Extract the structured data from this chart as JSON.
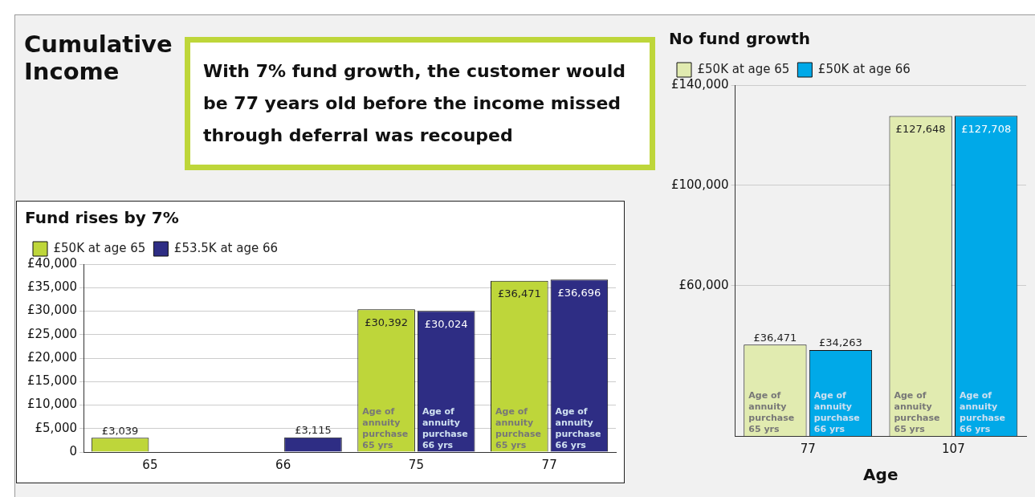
{
  "chart_data": [
    {
      "type": "other",
      "title": "Cumulative Income",
      "annotations": [
        "With 7% fund growth, the customer would be 77 years old before the income missed through deferral was recouped"
      ]
    },
    {
      "type": "bar",
      "title": "Fund rises by 7%",
      "categories": [
        "65",
        "66",
        "75",
        "77"
      ],
      "ylim": [
        0,
        40000
      ],
      "yticks": [
        0,
        {
          "value": 5000,
          "label": "£5,000"
        },
        {
          "value": 10000,
          "label": "£10,000"
        },
        {
          "value": 15000,
          "label": "£15,000"
        },
        {
          "value": 20000,
          "label": "£20,000"
        },
        {
          "value": 25000,
          "label": "£25,000"
        },
        {
          "value": 30000,
          "label": "£30,000"
        },
        {
          "value": 35000,
          "label": "£35,000"
        },
        {
          "value": 40000,
          "label": "£40,000"
        }
      ],
      "grid": "y",
      "legend": "top left",
      "series": [
        {
          "name": "£50K at age 65",
          "color": "#bed63a",
          "values": [
            3039,
            null,
            30392,
            36471
          ],
          "value_labels": [
            "£3,039",
            null,
            "£30,392",
            "£36,471"
          ]
        },
        {
          "name": "£53.5K at age 66",
          "color": "#2e2d84",
          "values": [
            null,
            3115,
            30024,
            36696
          ],
          "value_labels": [
            null,
            "£3,115",
            "£30,024",
            "£36,696"
          ]
        }
      ],
      "annotations": [
        "Age of annuity purchase 65 yrs",
        "Age of annuity purchase 66 yrs",
        "Age of annuity purchase 65 yrs",
        "Age of annuity purchase 66 yrs"
      ]
    },
    {
      "type": "bar",
      "title": "No fund growth",
      "xlabel": "Age",
      "categories": [
        "77",
        "107"
      ],
      "ylim": [
        0,
        140000
      ],
      "yticks": [
        {
          "value": 60000,
          "label": "£60,000"
        },
        {
          "value": 100000,
          "label": "£100,000"
        },
        {
          "value": 140000,
          "label": "£140,000"
        }
      ],
      "grid": "y",
      "legend": "top left",
      "series": [
        {
          "name": "£50K at age 65",
          "color": "#e1ebb0",
          "values": [
            36471,
            127648
          ],
          "value_labels": [
            "£36,471",
            "£127,648"
          ]
        },
        {
          "name": "£50K at age 66",
          "color": "#00a9e8",
          "values": [
            34263,
            127708
          ],
          "value_labels": [
            "£34,263",
            "£127,708"
          ]
        }
      ],
      "annotations": [
        "Age of annuity purchase 65 yrs",
        "Age of annuity purchase 66 yrs",
        "Age of annuity purchase 65 yrs",
        "Age of annuity purchase 66 yrs"
      ]
    }
  ]
}
